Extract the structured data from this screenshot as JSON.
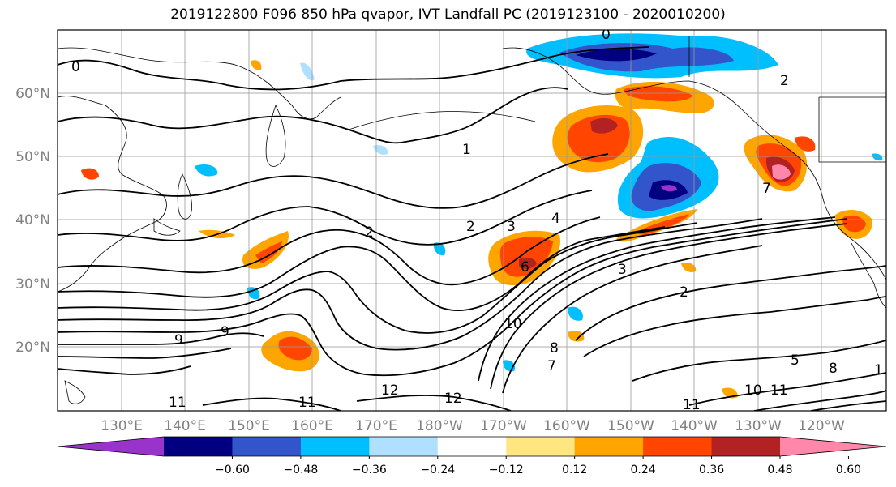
{
  "title": "2019122800 F096 850 hPa qvapor, IVT Landfall PC (2019123100 - 2020010200)",
  "lat_labels": [
    "60°N",
    "50°N",
    "40°N",
    "30°N",
    "20°N"
  ],
  "lon_labels": [
    "130°E",
    "140°E",
    "150°E",
    "160°E",
    "170°E",
    "180°W",
    "170°W",
    "160°W",
    "150°W",
    "140°W",
    "130°W",
    "120°W"
  ],
  "contour_labels": [
    "0",
    "2",
    "2",
    "1",
    "2",
    "3",
    "4",
    "7",
    "6",
    "10",
    "9",
    "9",
    "11",
    "11",
    "12",
    "12",
    "11",
    "10",
    "11",
    "8",
    "7",
    "3",
    "2",
    "5",
    "8",
    "1",
    "0"
  ],
  "colorbar": {
    "colors": [
      "#9933cc",
      "#000080",
      "#3355cc",
      "#00bfff",
      "#b0e0ff",
      "#ffffff",
      "#ffe680",
      "#ffa500",
      "#ff4500",
      "#b22222",
      "#ff88aa"
    ],
    "tick_labels": [
      "−0.60",
      "−0.48",
      "−0.36",
      "−0.24",
      "−0.12",
      "0.12",
      "0.24",
      "0.36",
      "0.48",
      "0.60"
    ]
  },
  "colors": {
    "land_outline": "#000000",
    "grid": "#999999",
    "axis_label": "#808080"
  }
}
